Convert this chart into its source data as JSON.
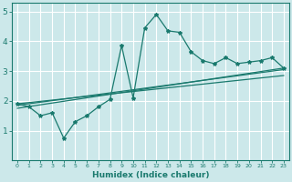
{
  "xlabel": "Humidex (Indice chaleur)",
  "bg_color": "#cce8ea",
  "grid_color": "#ffffff",
  "line_color": "#1a7a6e",
  "xlim": [
    -0.5,
    23.5
  ],
  "ylim": [
    0,
    5.3
  ],
  "xticks": [
    0,
    1,
    2,
    3,
    4,
    5,
    6,
    7,
    8,
    9,
    10,
    11,
    12,
    13,
    14,
    15,
    16,
    17,
    18,
    19,
    20,
    21,
    22,
    23
  ],
  "yticks": [
    1,
    2,
    3,
    4,
    5
  ],
  "curve1_x": [
    0,
    1,
    2,
    3,
    4,
    5,
    6,
    7,
    8,
    9,
    10,
    11,
    12,
    13,
    14,
    15,
    16,
    17,
    18,
    19,
    20,
    21,
    22,
    23
  ],
  "curve1_y": [
    1.9,
    1.8,
    1.5,
    1.6,
    0.75,
    1.3,
    1.5,
    1.8,
    2.05,
    3.85,
    2.1,
    4.45,
    4.9,
    4.35,
    4.3,
    3.65,
    3.35,
    3.25,
    3.45,
    3.25,
    3.3,
    3.35,
    3.45,
    3.1
  ],
  "curve2_x": [
    0,
    23
  ],
  "curve2_y": [
    1.85,
    3.05
  ],
  "curve3_x": [
    0,
    23
  ],
  "curve3_y": [
    1.9,
    2.85
  ],
  "curve4_x": [
    0,
    23
  ],
  "curve4_y": [
    1.75,
    3.1
  ]
}
